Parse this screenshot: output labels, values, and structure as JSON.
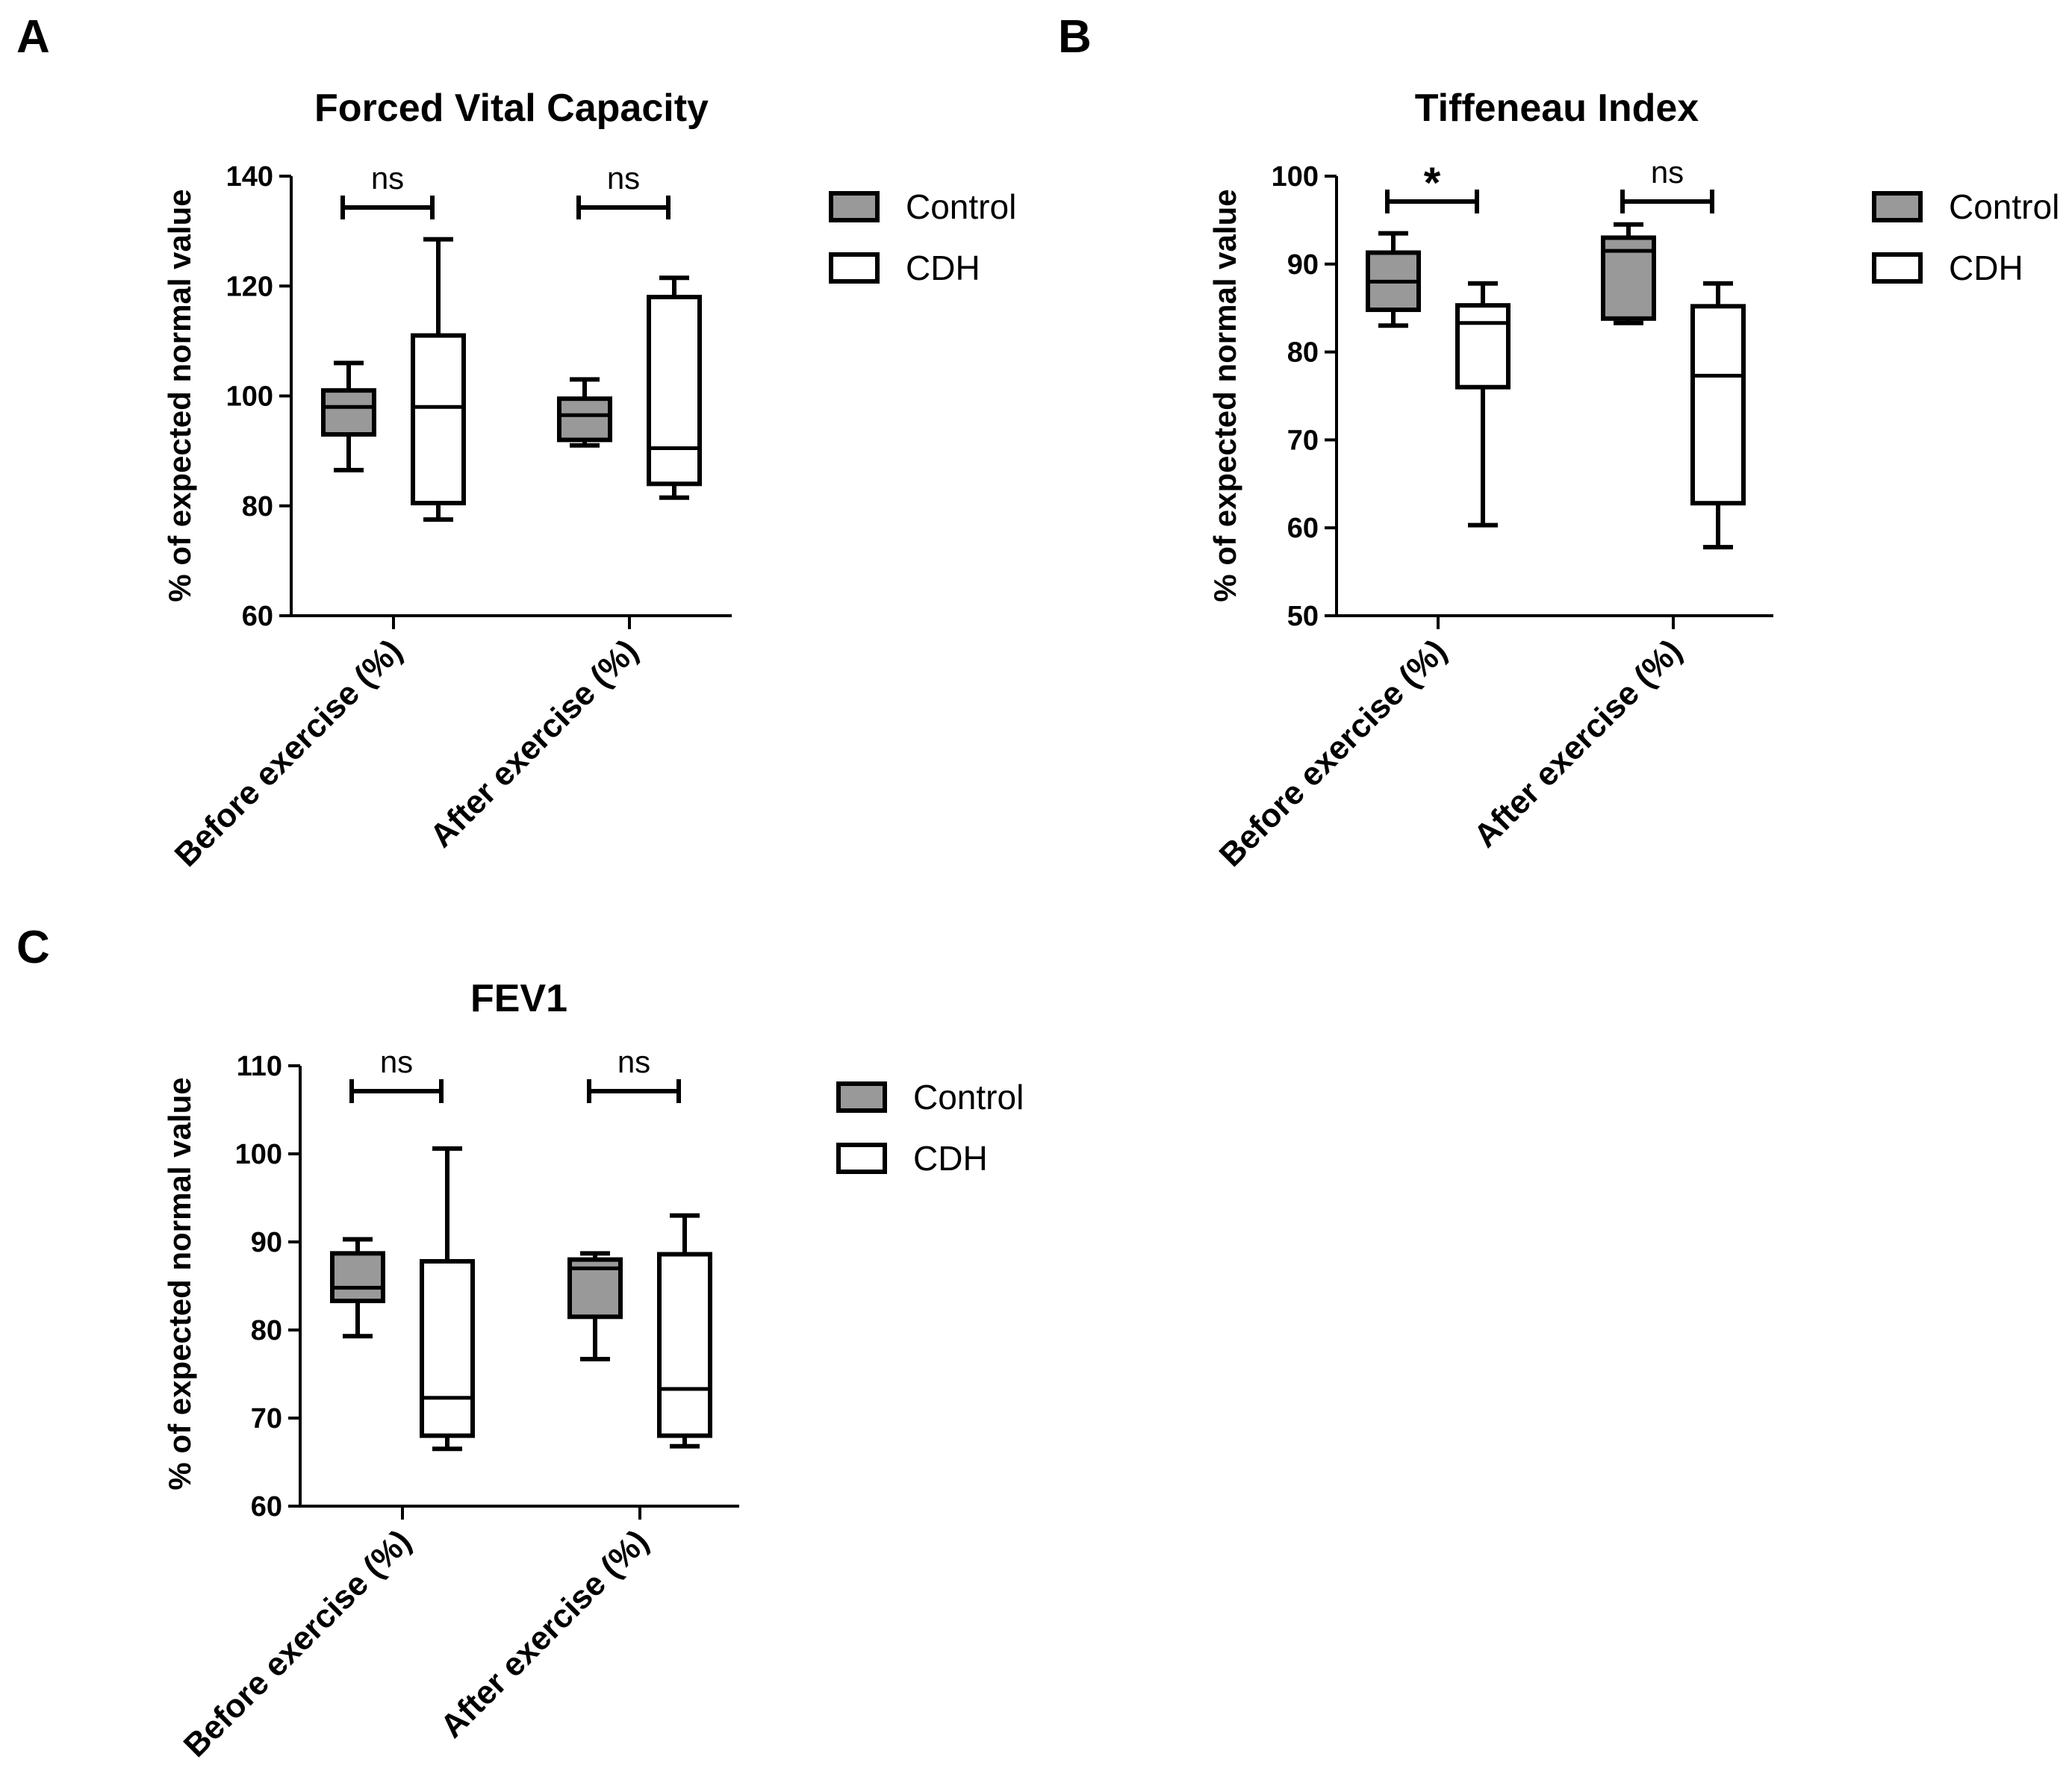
{
  "colors": {
    "control_fill": "#999999",
    "cdh_fill": "#ffffff",
    "stroke": "#000000"
  },
  "chart_data": [
    {
      "type": "box",
      "panel": "A",
      "title": "Forced Vital Capacity",
      "ylabel": "% of expected normal value",
      "ylim": [
        60,
        140
      ],
      "yticks": [
        60,
        80,
        100,
        120,
        140
      ],
      "categories": [
        "Before exercise (%)",
        "After exercise (%)"
      ],
      "legend": [
        "Control",
        "CDH"
      ],
      "legend_position": "right",
      "series": [
        {
          "name": "Control",
          "boxes": [
            {
              "min": 86.5,
              "q1": 93,
              "median": 98,
              "q3": 101,
              "max": 106
            },
            {
              "min": 91,
              "q1": 92,
              "median": 96.5,
              "q3": 99.5,
              "max": 103
            }
          ]
        },
        {
          "name": "CDH",
          "boxes": [
            {
              "min": 77.5,
              "q1": 80.5,
              "median": 98,
              "q3": 111,
              "max": 128.5
            },
            {
              "min": 81.5,
              "q1": 84,
              "median": 90.5,
              "q3": 118,
              "max": 121.5
            }
          ]
        }
      ],
      "significance": [
        "ns",
        "ns"
      ]
    },
    {
      "type": "box",
      "panel": "B",
      "title": "Tiffeneau Index",
      "ylabel": "%  of expected normal value",
      "ylim": [
        50,
        100
      ],
      "yticks": [
        50,
        60,
        70,
        80,
        90,
        100
      ],
      "categories": [
        "Before exercise (%)",
        "After exercise (%)"
      ],
      "legend": [
        "Control",
        "CDH"
      ],
      "legend_position": "right",
      "series": [
        {
          "name": "Control",
          "boxes": [
            {
              "min": 83,
              "q1": 84.8,
              "median": 88,
              "q3": 91.3,
              "max": 93.5
            },
            {
              "min": 83.3,
              "q1": 83.8,
              "median": 91.5,
              "q3": 93,
              "max": 94.5
            }
          ]
        },
        {
          "name": "CDH",
          "boxes": [
            {
              "min": 60.3,
              "q1": 76,
              "median": 83.3,
              "q3": 85.3,
              "max": 87.8
            },
            {
              "min": 57.8,
              "q1": 62.8,
              "median": 77.3,
              "q3": 85.2,
              "max": 87.8
            }
          ]
        }
      ],
      "significance": [
        "*",
        "ns"
      ]
    },
    {
      "type": "box",
      "panel": "C",
      "title": "FEV1",
      "ylabel": "%  of expected normal value",
      "ylim": [
        60,
        110
      ],
      "yticks": [
        60,
        70,
        80,
        90,
        100,
        110
      ],
      "categories": [
        "Before exercise (%)",
        "After exercise (%)"
      ],
      "legend": [
        "Control",
        "CDH"
      ],
      "legend_position": "right",
      "series": [
        {
          "name": "Control",
          "boxes": [
            {
              "min": 79.3,
              "q1": 83.3,
              "median": 84.8,
              "q3": 88.7,
              "max": 90.3
            },
            {
              "min": 76.7,
              "q1": 81.5,
              "median": 87,
              "q3": 88,
              "max": 88.7
            }
          ]
        },
        {
          "name": "CDH",
          "boxes": [
            {
              "min": 66.5,
              "q1": 68,
              "median": 72.3,
              "q3": 87.8,
              "max": 100.6
            },
            {
              "min": 66.8,
              "q1": 68,
              "median": 73.3,
              "q3": 88.6,
              "max": 93
            }
          ]
        }
      ],
      "significance": [
        "ns",
        "ns"
      ]
    }
  ]
}
